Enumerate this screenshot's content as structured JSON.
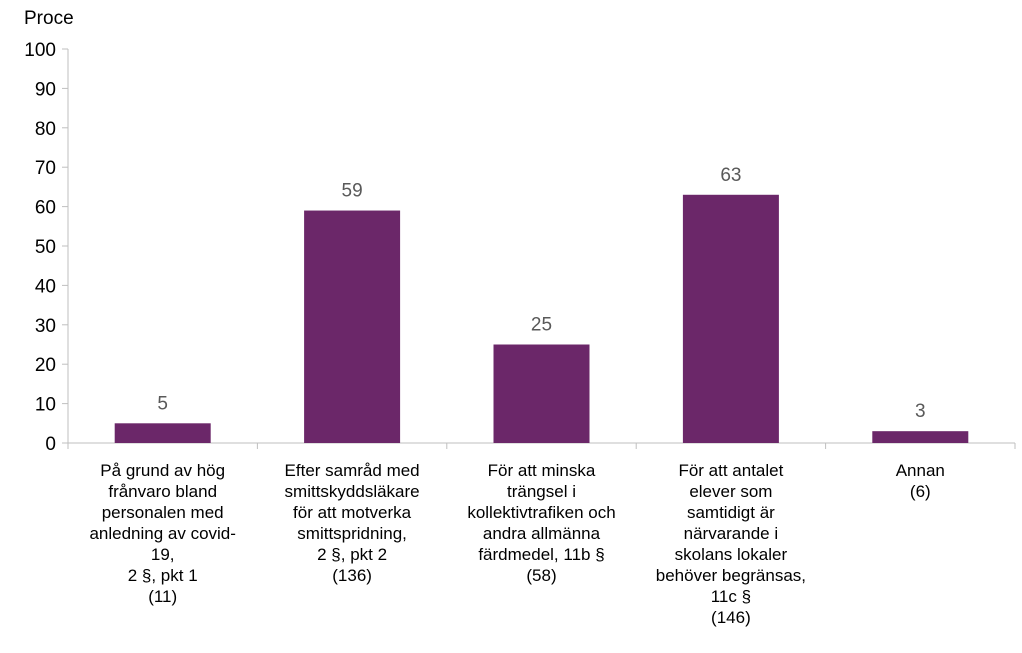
{
  "chart_data": {
    "type": "bar",
    "ylabel": "Proce",
    "ylim": [
      0,
      100
    ],
    "yticks": [
      0,
      10,
      20,
      30,
      40,
      50,
      60,
      70,
      80,
      90,
      100
    ],
    "grid": false,
    "legend": "none",
    "bar_color": "#6B2769",
    "categories": [
      "På grund av hög\nfrånvaro bland\npersonalen med\nanledning av covid-\n19,\n2 §, pkt 1\n(11)",
      "Efter samråd med\nsmittskyddsläkare\nför att motverka\nsmittspridning,\n2 §, pkt 2\n(136)",
      "För att minska\nträngsel i\nkollektivtrafiken och\nandra allmänna\nfärdmedel, 11b §\n(58)",
      "För att antalet\nelever som\nsamtidigt är\nnärvarande i\nskolans lokaler\nbehöver begränsas,\n11c §\n(146)",
      "Annan\n(6)"
    ],
    "values": [
      5,
      59,
      25,
      63,
      3
    ],
    "data_labels": [
      "5",
      "59",
      "25",
      "63",
      "3"
    ]
  }
}
